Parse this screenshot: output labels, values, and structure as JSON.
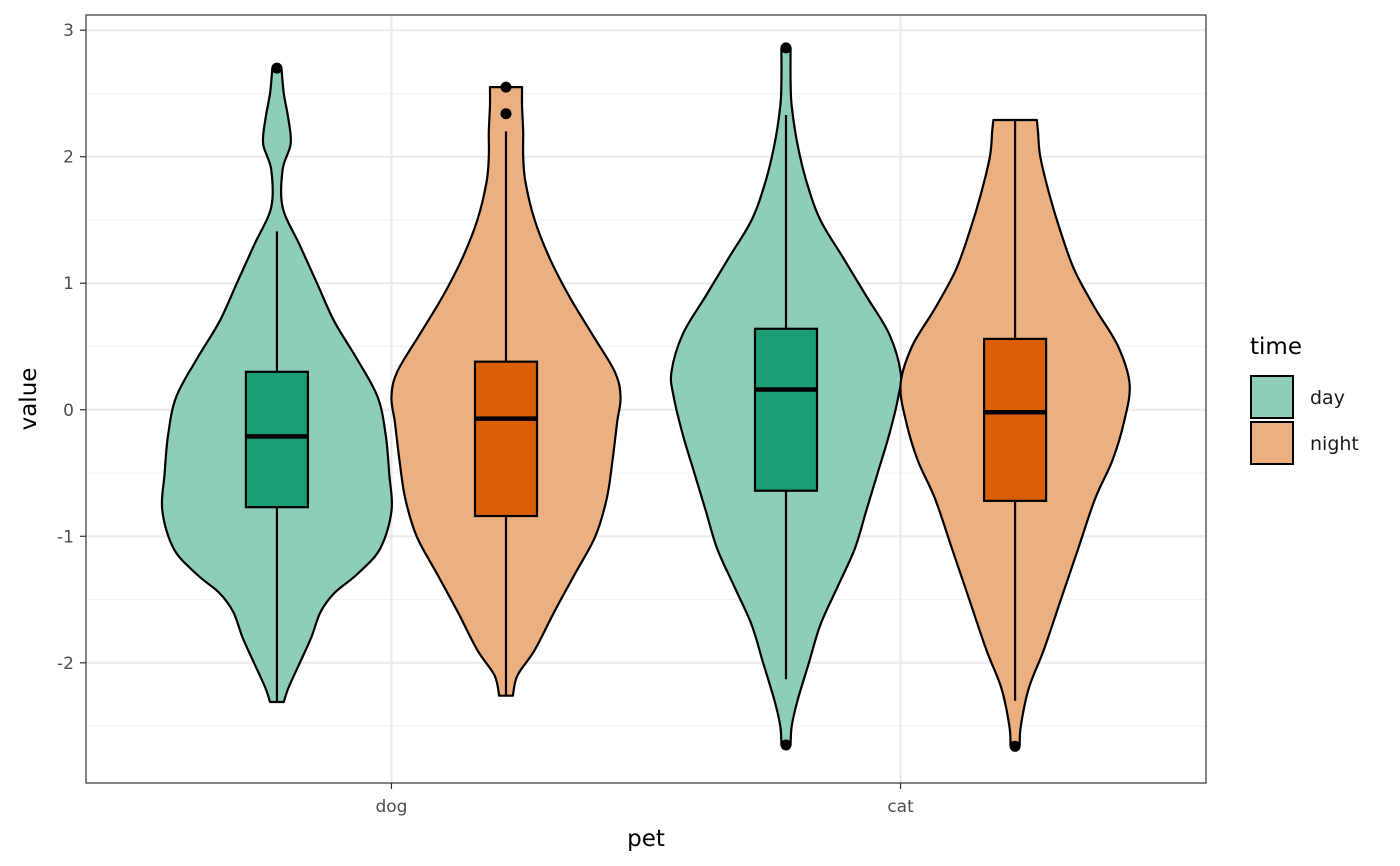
{
  "chart_data": {
    "type": "violin",
    "title": "",
    "xlabel": "pet",
    "ylabel": "value",
    "categories": [
      "dog",
      "cat"
    ],
    "ylim": [
      -2.95,
      3.12
    ],
    "yticks": [
      -2,
      -1,
      0,
      1,
      2,
      3
    ],
    "yticks_labels": [
      "-2",
      "-1",
      "0",
      "1",
      "2",
      "3"
    ],
    "grid": true,
    "legend": {
      "title": "time",
      "position": "right",
      "entries": [
        {
          "label": "day",
          "fill": "#8ecdb9"
        },
        {
          "label": "night",
          "fill": "#ecaf7f"
        }
      ]
    },
    "series": [
      {
        "name": "day",
        "violin_color": "#8ecdb9",
        "box_color": "#1b9e77",
        "groups": [
          {
            "category": "dog",
            "min": -2.31,
            "max": 2.7,
            "box": {
              "q1": -0.77,
              "median": -0.21,
              "q3": 0.3,
              "whisker_low": -2.31,
              "whisker_high": 1.41
            },
            "outliers": [
              2.7
            ],
            "density": [
              [
                -2.31,
                0.06
              ],
              [
                -2.2,
                0.1
              ],
              [
                -2.0,
                0.2
              ],
              [
                -1.8,
                0.3
              ],
              [
                -1.6,
                0.38
              ],
              [
                -1.45,
                0.5
              ],
              [
                -1.3,
                0.7
              ],
              [
                -1.1,
                0.9
              ],
              [
                -0.8,
                1.0
              ],
              [
                -0.5,
                0.98
              ],
              [
                -0.2,
                0.95
              ],
              [
                0.1,
                0.88
              ],
              [
                0.4,
                0.7
              ],
              [
                0.7,
                0.5
              ],
              [
                1.0,
                0.35
              ],
              [
                1.3,
                0.2
              ],
              [
                1.6,
                0.05
              ],
              [
                1.9,
                -0.05
              ],
              [
                2.1,
                -0.12
              ],
              [
                2.3,
                -0.1
              ],
              [
                2.5,
                -0.06
              ],
              [
                2.7,
                -0.04
              ]
            ]
          },
          {
            "category": "cat",
            "min": -2.65,
            "max": 2.86,
            "box": {
              "q1": -0.64,
              "median": 0.16,
              "q3": 0.64,
              "whisker_low": -2.13,
              "whisker_high": 2.33
            },
            "outliers": [
              -2.65,
              2.86
            ],
            "density": [
              [
                -2.65,
                0.03
              ],
              [
                -2.5,
                0.05
              ],
              [
                -2.3,
                0.1
              ],
              [
                -2.0,
                0.2
              ],
              [
                -1.7,
                0.3
              ],
              [
                -1.4,
                0.45
              ],
              [
                -1.1,
                0.6
              ],
              [
                -0.8,
                0.7
              ],
              [
                -0.5,
                0.8
              ],
              [
                -0.2,
                0.9
              ],
              [
                0.1,
                0.98
              ],
              [
                0.3,
                1.0
              ],
              [
                0.6,
                0.9
              ],
              [
                0.9,
                0.7
              ],
              [
                1.2,
                0.5
              ],
              [
                1.5,
                0.3
              ],
              [
                1.8,
                0.18
              ],
              [
                2.1,
                0.1
              ],
              [
                2.4,
                0.05
              ],
              [
                2.6,
                0.04
              ],
              [
                2.86,
                0.03
              ]
            ]
          }
        ]
      },
      {
        "name": "night",
        "violin_color": "#ecaf7f",
        "box_color": "#d95f02",
        "groups": [
          {
            "category": "dog",
            "min": -2.26,
            "max": 2.55,
            "box": {
              "q1": -0.84,
              "median": -0.07,
              "q3": 0.38,
              "whisker_low": -2.26,
              "whisker_high": 2.2
            },
            "outliers": [
              2.34,
              2.55
            ],
            "density": [
              [
                -2.26,
                0.06
              ],
              [
                -2.1,
                0.1
              ],
              [
                -1.9,
                0.25
              ],
              [
                -1.6,
                0.42
              ],
              [
                -1.3,
                0.6
              ],
              [
                -1.0,
                0.78
              ],
              [
                -0.7,
                0.88
              ],
              [
                -0.4,
                0.93
              ],
              [
                -0.1,
                0.97
              ],
              [
                0.1,
                1.0
              ],
              [
                0.3,
                0.95
              ],
              [
                0.6,
                0.75
              ],
              [
                0.9,
                0.55
              ],
              [
                1.2,
                0.38
              ],
              [
                1.5,
                0.25
              ],
              [
                1.8,
                0.17
              ],
              [
                2.0,
                0.15
              ],
              [
                2.2,
                0.15
              ],
              [
                2.4,
                0.14
              ],
              [
                2.55,
                0.14
              ]
            ]
          },
          {
            "category": "cat",
            "min": -2.66,
            "max": 2.29,
            "box": {
              "q1": -0.72,
              "median": -0.02,
              "q3": 0.56,
              "whisker_low": -2.3,
              "whisker_high": 2.29
            },
            "outliers": [
              -2.66
            ],
            "density": [
              [
                -2.66,
                0.03
              ],
              [
                -2.5,
                0.05
              ],
              [
                -2.2,
                0.12
              ],
              [
                -1.9,
                0.25
              ],
              [
                -1.5,
                0.4
              ],
              [
                -1.1,
                0.55
              ],
              [
                -0.7,
                0.7
              ],
              [
                -0.4,
                0.85
              ],
              [
                -0.1,
                0.95
              ],
              [
                0.2,
                1.0
              ],
              [
                0.5,
                0.9
              ],
              [
                0.8,
                0.7
              ],
              [
                1.1,
                0.52
              ],
              [
                1.4,
                0.4
              ],
              [
                1.7,
                0.3
              ],
              [
                2.0,
                0.22
              ],
              [
                2.2,
                0.2
              ],
              [
                2.29,
                0.19
              ]
            ]
          }
        ]
      }
    ]
  }
}
